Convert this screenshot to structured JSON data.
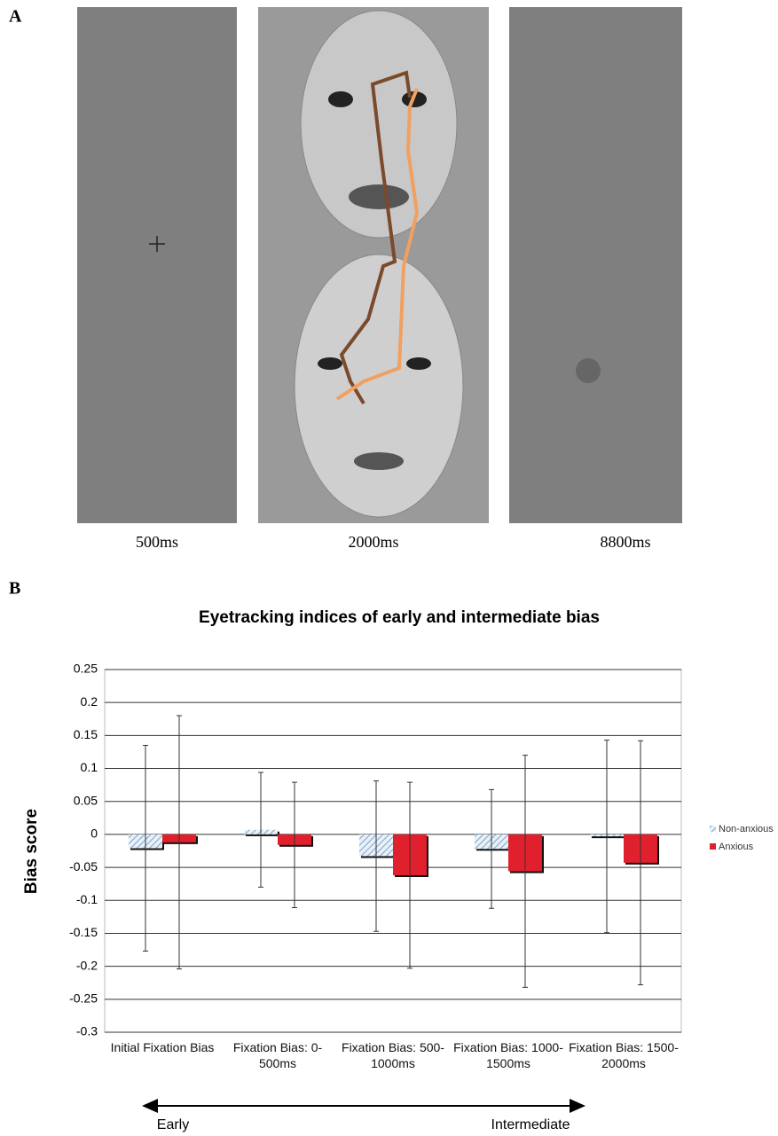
{
  "panel_a": {
    "label": "A",
    "durations": [
      "500ms",
      "2000ms",
      "8800ms"
    ]
  },
  "panel_b_label": "B",
  "chart_data": {
    "type": "bar",
    "title": "Eyetracking indices of early and intermediate bias",
    "y_label": "Bias score",
    "categories": [
      "Initial Fixation Bias",
      "Fixation Bias: 0-500ms",
      "Fixation Bias: 500-1000ms",
      "Fixation Bias: 1000-1500ms",
      "Fixation Bias: 1500-2000ms"
    ],
    "series": [
      {
        "name": "Non-anxious",
        "color": "#9dbbd8",
        "values": [
          -0.021,
          0.007,
          -0.033,
          -0.022,
          -0.003
        ],
        "errors": [
          0.156,
          0.087,
          0.114,
          0.09,
          0.146
        ]
      },
      {
        "name": "Anxious",
        "color": "#e0202c",
        "values": [
          -0.012,
          -0.016,
          -0.062,
          -0.056,
          -0.043
        ],
        "errors": [
          0.192,
          0.095,
          0.141,
          0.176,
          0.185
        ]
      }
    ],
    "ylim": [
      -0.3,
      0.25
    ],
    "yticks": [
      0.25,
      0.2,
      0.15,
      0.1,
      0.05,
      0,
      -0.05,
      -0.1,
      -0.15,
      -0.2,
      -0.25,
      -0.3
    ],
    "grid": true,
    "legend": "right",
    "annotations": [
      "Early",
      "Intermediate"
    ]
  }
}
